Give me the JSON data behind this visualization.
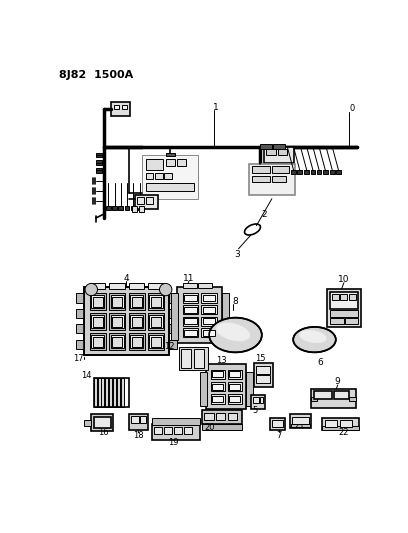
{
  "title": "8J82  1500A",
  "bg_color": "#ffffff",
  "lc": "#000000",
  "fig_width": 4.08,
  "fig_height": 5.33,
  "dpi": 100,
  "title_fontsize": 8,
  "title_fontweight": "bold",
  "gray_light": "#d8d8d8",
  "gray_mid": "#aaaaaa",
  "gray_dark": "#555555",
  "gray_very_light": "#eeeeee"
}
